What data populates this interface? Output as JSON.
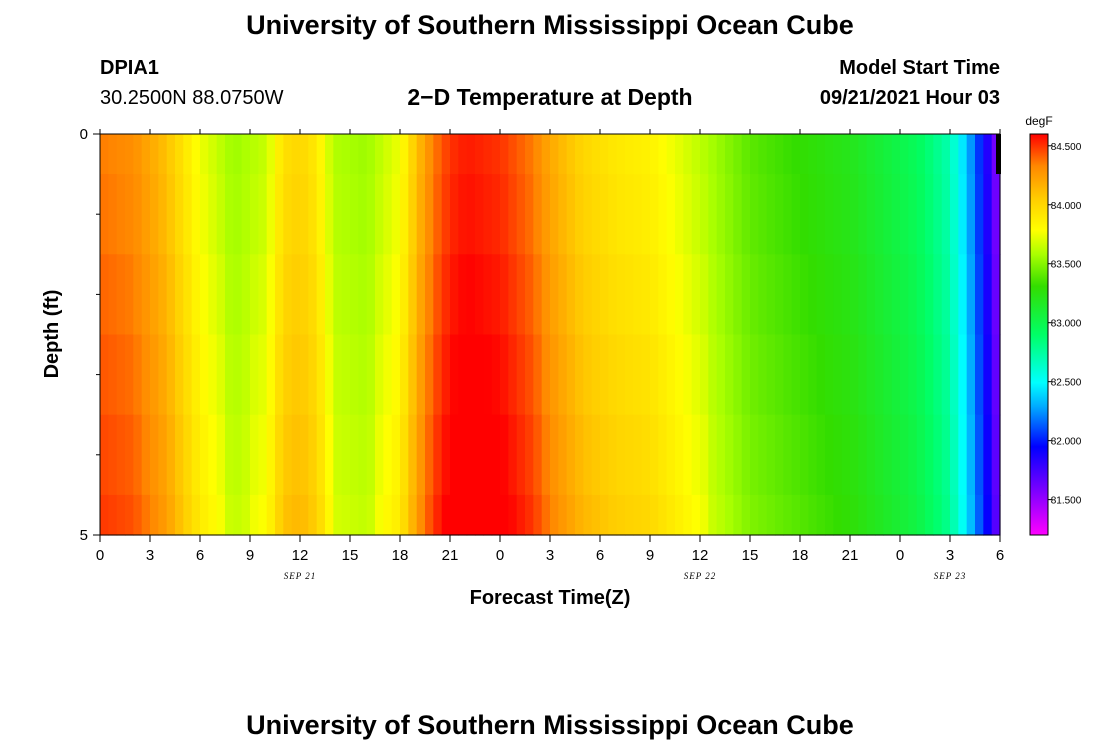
{
  "page": {
    "title_top": "University of Southern Mississippi Ocean Cube",
    "title_bottom": "University of Southern Mississippi Ocean Cube"
  },
  "header": {
    "station_id": "DPIA1",
    "location": "30.2500N  88.0750W",
    "plot_title": "2−D Temperature at Depth",
    "model_start_label": "Model Start Time",
    "model_start_value": "09/21/2021 Hour 03"
  },
  "colors": {
    "background": "#ffffff",
    "axis": "#000000"
  },
  "chart_data": {
    "type": "heatmap",
    "title": "2−D Temperature at Depth",
    "xlabel": "Forecast Time(Z)",
    "ylabel": "Depth (ft)",
    "units": "degF",
    "x_range_hours": [
      0,
      54
    ],
    "y_range": [
      0,
      5
    ],
    "x_tick_labels": [
      "0",
      "3",
      "6",
      "9",
      "12",
      "15",
      "18",
      "21",
      "0",
      "3",
      "6",
      "9",
      "12",
      "15",
      "18",
      "21",
      "0",
      "3",
      "6"
    ],
    "y_tick_labels": [
      "0",
      "5"
    ],
    "y_minor_ticks": [
      1,
      2,
      3,
      4
    ],
    "date_labels": [
      {
        "hour": 12,
        "label": "SEP 21"
      },
      {
        "hour": 36,
        "label": "SEP 22"
      },
      {
        "hour": 51,
        "label": "SEP 23"
      }
    ],
    "colorbar": {
      "min": 81.2,
      "max": 84.6,
      "ticks": [
        "84.500",
        "84.000",
        "83.500",
        "83.000",
        "82.500",
        "82.000",
        "81.500"
      ],
      "tick_values": [
        84.5,
        84.0,
        83.5,
        83.0,
        82.5,
        82.0,
        81.5
      ]
    },
    "surface_profile": [
      {
        "hour": 0,
        "value": 84.35
      },
      {
        "hour": 2,
        "value": 84.3
      },
      {
        "hour": 4,
        "value": 84.1
      },
      {
        "hour": 6,
        "value": 83.75
      },
      {
        "hour": 8,
        "value": 83.55
      },
      {
        "hour": 10,
        "value": 83.65
      },
      {
        "hour": 11,
        "value": 83.95
      },
      {
        "hour": 12,
        "value": 84.0
      },
      {
        "hour": 13,
        "value": 83.9
      },
      {
        "hour": 14,
        "value": 83.6
      },
      {
        "hour": 16,
        "value": 83.55
      },
      {
        "hour": 18,
        "value": 83.75
      },
      {
        "hour": 19,
        "value": 84.1
      },
      {
        "hour": 20,
        "value": 84.35
      },
      {
        "hour": 21,
        "value": 84.5
      },
      {
        "hour": 22,
        "value": 84.55
      },
      {
        "hour": 24,
        "value": 84.5
      },
      {
        "hour": 26,
        "value": 84.35
      },
      {
        "hour": 27,
        "value": 84.2
      },
      {
        "hour": 29,
        "value": 84.0
      },
      {
        "hour": 31,
        "value": 83.9
      },
      {
        "hour": 33,
        "value": 83.85
      },
      {
        "hour": 35,
        "value": 83.7
      },
      {
        "hour": 37,
        "value": 83.55
      },
      {
        "hour": 39,
        "value": 83.4
      },
      {
        "hour": 42,
        "value": 83.3
      },
      {
        "hour": 45,
        "value": 83.2
      },
      {
        "hour": 49,
        "value": 82.95
      },
      {
        "hour": 51,
        "value": 82.7
      },
      {
        "hour": 52,
        "value": 82.35
      },
      {
        "hour": 53,
        "value": 81.95
      },
      {
        "hour": 53.6,
        "value": 81.7
      },
      {
        "hour": 54,
        "value": 81.45
      }
    ],
    "depth_layers": [
      {
        "depth_from": 0,
        "depth_to": 0.5,
        "delta": 0
      },
      {
        "depth_from": 0.5,
        "depth_to": 1.5,
        "delta": 0.02
      },
      {
        "depth_from": 1.5,
        "depth_to": 2.5,
        "delta": 0.05
      },
      {
        "depth_from": 2.5,
        "depth_to": 3.5,
        "delta": 0.08
      },
      {
        "depth_from": 3.5,
        "depth_to": 4.5,
        "delta": 0.11
      },
      {
        "depth_from": 4.5,
        "depth_to": 5,
        "delta": 0.14
      }
    ]
  }
}
